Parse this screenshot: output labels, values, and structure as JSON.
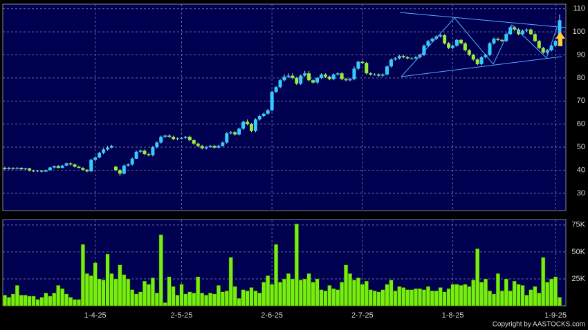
{
  "chart_data": [
    {
      "type": "candlestick",
      "up_color": "#33ccff",
      "down_color": "#99ee33",
      "wick_color": "#dddddd",
      "grid": true,
      "ylim": [
        22.5,
        112
      ],
      "yticks": [
        30,
        40,
        50,
        60,
        70,
        80,
        90,
        100,
        110
      ],
      "open": [
        41,
        40.5,
        41,
        40.6,
        41,
        40.4,
        40.8,
        39.8,
        39.5,
        39.8,
        39.4,
        40,
        41.2,
        41.8,
        41,
        42,
        43,
        42.5,
        41.5,
        41,
        40.2,
        39.5,
        44.5,
        45.5,
        47.5,
        49,
        49.8,
        41.5,
        40,
        38.5,
        42,
        42.5,
        45,
        48,
        48.5,
        47,
        46.5,
        50,
        52,
        54.5,
        55,
        54.5,
        53.5,
        53.8,
        54,
        54.5,
        53,
        51.5,
        50.5,
        49.5,
        50,
        50.5,
        49.8,
        50.5,
        52,
        56,
        56.5,
        55.5,
        58,
        61,
        60,
        57,
        62,
        63.5,
        64.5,
        66,
        74,
        76,
        79,
        80.5,
        81,
        80,
        77.5,
        81,
        82,
        79,
        78,
        80,
        81.5,
        80.5,
        79.5,
        81.5,
        82,
        79.5,
        79,
        79.5,
        84,
        87,
        86.5,
        82,
        81.5,
        81.5,
        81,
        81.5,
        85,
        88,
        88.5,
        89.5,
        89,
        88.5,
        88.5,
        89,
        90,
        94,
        96,
        97,
        98,
        98.5,
        95,
        93,
        94,
        96.5,
        95,
        92,
        90,
        88,
        86,
        89,
        90,
        95,
        97,
        96.5,
        96,
        99,
        102,
        101,
        99,
        100.5,
        101,
        99,
        96,
        93,
        91,
        92,
        94,
        96
      ],
      "high": [
        41.5,
        41.4,
        41.3,
        41.4,
        41.3,
        41.1,
        41,
        40.2,
        40.1,
        40.1,
        40.3,
        41.5,
        42,
        42.2,
        42.3,
        43.3,
        43.4,
        42.8,
        41.9,
        41.3,
        40.5,
        45,
        46,
        48,
        49.5,
        50.5,
        51,
        42,
        40.5,
        42.5,
        43,
        45.5,
        48.5,
        49,
        49,
        47.5,
        50.5,
        52.5,
        55,
        55.5,
        55.6,
        55,
        54.2,
        54.3,
        54.8,
        55,
        53.5,
        52,
        51,
        50.5,
        51,
        51,
        51,
        52.5,
        56.5,
        57,
        57,
        58.5,
        61.5,
        62,
        60.5,
        62.5,
        64,
        65,
        66.5,
        74.5,
        76.5,
        79.5,
        81.5,
        82,
        82,
        80.5,
        81.5,
        83,
        83,
        79.5,
        80.5,
        82,
        82,
        81,
        82,
        82.5,
        82.5,
        80,
        80,
        85,
        87.5,
        87.5,
        87,
        82.5,
        82,
        82,
        82,
        85.5,
        88.5,
        89,
        90,
        90,
        89.5,
        89,
        89.5,
        90.5,
        94.5,
        96.5,
        97.5,
        98.5,
        99,
        99,
        95.5,
        94.5,
        97,
        97,
        95.5,
        92.5,
        90.5,
        88.5,
        89.5,
        90.5,
        95.5,
        97.5,
        97.5,
        97,
        99.5,
        102.5,
        102.5,
        101.5,
        101,
        101.5,
        101.5,
        99.5,
        96.5,
        93.5,
        92.5,
        94.5,
        96.5,
        107.5
      ],
      "low": [
        40,
        40.2,
        40.2,
        40.3,
        40,
        40,
        39.5,
        39.2,
        39.2,
        39,
        39.2,
        39.8,
        40.8,
        40.8,
        40.8,
        41.8,
        42,
        41.2,
        40.8,
        39.8,
        39,
        39.3,
        44,
        45.2,
        47,
        48.5,
        49.5,
        39.5,
        37.5,
        38.2,
        41.6,
        42,
        44.8,
        47.5,
        46.5,
        46,
        46,
        49.5,
        51.5,
        54,
        54,
        53,
        53,
        53.4,
        53.6,
        52.5,
        51,
        50,
        49,
        49,
        49.8,
        49.3,
        49.5,
        50.2,
        51.5,
        55.5,
        55,
        55,
        57.5,
        59.5,
        56.5,
        56.5,
        61.5,
        63,
        64,
        65.5,
        73.5,
        75.5,
        78.5,
        80,
        79.5,
        77,
        77,
        80.5,
        78.5,
        77.5,
        77.5,
        79.5,
        80,
        79,
        79,
        81,
        79,
        78.5,
        78.5,
        79,
        83.5,
        86,
        81.5,
        81,
        81,
        80.5,
        80.5,
        81,
        84.5,
        87.5,
        88,
        88.5,
        88,
        88,
        88,
        88.5,
        89.5,
        93.5,
        95.5,
        96.5,
        97.5,
        94.5,
        92.5,
        92.5,
        93.5,
        94.5,
        91.5,
        89.5,
        87.5,
        85.5,
        85.5,
        88.5,
        89.5,
        94.5,
        96,
        95.5,
        95.5,
        98.5,
        100.5,
        98.5,
        98.5,
        100,
        98.5,
        95.5,
        92.5,
        90.5,
        90.5,
        91.5,
        93.5,
        95.5
      ],
      "close": [
        40.5,
        41,
        40.6,
        41,
        40.4,
        40.8,
        39.8,
        39.5,
        39.8,
        39.4,
        40,
        41.2,
        41.8,
        41,
        42,
        43,
        42.5,
        41.5,
        41,
        40.2,
        39.5,
        44.5,
        45.5,
        47.5,
        49,
        49.8,
        50.5,
        40,
        38.5,
        42,
        42.5,
        45,
        48,
        48.5,
        47,
        46.5,
        50,
        52,
        54.5,
        55,
        54.5,
        53.5,
        53.8,
        54,
        54.5,
        53,
        51.5,
        50.5,
        49.5,
        50,
        50.5,
        49.8,
        50.5,
        52,
        56,
        56.5,
        55.5,
        58,
        61,
        60,
        57,
        62,
        63.5,
        64.5,
        66,
        74,
        76,
        79,
        80.5,
        81,
        80,
        77.5,
        81,
        82,
        79,
        78,
        80,
        81.5,
        80.5,
        79.5,
        81.5,
        82,
        79.5,
        79,
        79.5,
        84,
        87,
        86.5,
        82,
        81.5,
        81.5,
        81,
        81.5,
        85,
        88,
        88.5,
        89.5,
        89,
        88.5,
        88.5,
        89,
        90,
        94,
        96,
        97,
        98,
        98.5,
        95,
        93,
        94,
        96.5,
        95,
        92,
        90,
        88,
        86,
        89,
        90,
        95,
        97,
        96.5,
        96,
        99,
        102,
        101,
        99,
        100.5,
        101,
        99,
        96,
        93,
        91,
        92,
        94,
        96,
        105
      ]
    },
    {
      "type": "bar",
      "color": "#77ee11",
      "grid": true,
      "ylim": [
        0,
        80000
      ],
      "yticks": [
        {
          "value": 25000,
          "label": "25K"
        },
        {
          "value": 50000,
          "label": "50K"
        },
        {
          "value": 75000,
          "label": "75K"
        }
      ],
      "categories": [
        null,
        null,
        null,
        null,
        null,
        null,
        null,
        null,
        null,
        null,
        null,
        null,
        null,
        null,
        null,
        null,
        null,
        null,
        null,
        null,
        null,
        null,
        "1-4-25",
        null,
        null,
        null,
        null,
        null,
        null,
        null,
        null,
        null,
        null,
        null,
        null,
        null,
        null,
        null,
        null,
        null,
        null,
        null,
        null,
        "2-5-25",
        null,
        null,
        null,
        null,
        null,
        null,
        null,
        null,
        null,
        null,
        null,
        null,
        null,
        null,
        null,
        null,
        null,
        null,
        null,
        null,
        null,
        "2-6-25",
        null,
        null,
        null,
        null,
        null,
        null,
        null,
        null,
        null,
        null,
        null,
        null,
        null,
        null,
        null,
        null,
        null,
        null,
        null,
        null,
        null,
        "2-7-25",
        null,
        null,
        null,
        null,
        null,
        null,
        null,
        null,
        null,
        null,
        null,
        null,
        null,
        null,
        null,
        null,
        null,
        null,
        null,
        null,
        null,
        "1-8-25",
        null,
        null,
        null,
        null,
        null,
        null,
        null,
        null,
        null,
        null,
        null,
        null,
        null,
        null,
        null,
        null,
        null,
        null,
        null,
        null,
        null,
        null,
        null,
        null,
        "1-9-25",
        null
      ],
      "values": [
        10000,
        8000,
        11000,
        19000,
        10000,
        10000,
        9000,
        9000,
        6000,
        8000,
        12000,
        9000,
        12000,
        19000,
        16000,
        11000,
        8000,
        6000,
        6000,
        57000,
        30000,
        28000,
        40000,
        25000,
        24000,
        48000,
        30000,
        25000,
        38000,
        29000,
        25000,
        15000,
        11000,
        13000,
        23000,
        20000,
        26000,
        12000,
        66000,
        3000,
        27000,
        18000,
        10000,
        20000,
        11000,
        13000,
        12000,
        27000,
        12000,
        10000,
        12000,
        11000,
        19000,
        13000,
        14000,
        45000,
        18000,
        7000,
        15000,
        14000,
        17000,
        14000,
        12000,
        22000,
        28000,
        20000,
        57000,
        22000,
        25000,
        30000,
        25000,
        76000,
        24000,
        25000,
        30000,
        22000,
        25000,
        15000,
        14000,
        19000,
        16000,
        15000,
        22000,
        38000,
        30000,
        24000,
        26000,
        20000,
        23000,
        15000,
        14000,
        13000,
        15000,
        20000,
        24000,
        14000,
        18000,
        17000,
        15000,
        15000,
        16000,
        16000,
        15000,
        18000,
        14000,
        14000,
        17000,
        13000,
        16000,
        20000,
        20000,
        19000,
        20000,
        18000,
        24000,
        53000,
        22000,
        25000,
        14000,
        11000,
        30000,
        14000,
        25000,
        14000,
        23000,
        20000,
        19000,
        10000,
        15000,
        18000,
        12000,
        45000,
        22000,
        25000,
        27000,
        8000
      ]
    }
  ],
  "copyright": "Copyright by AASTOCKS.com"
}
